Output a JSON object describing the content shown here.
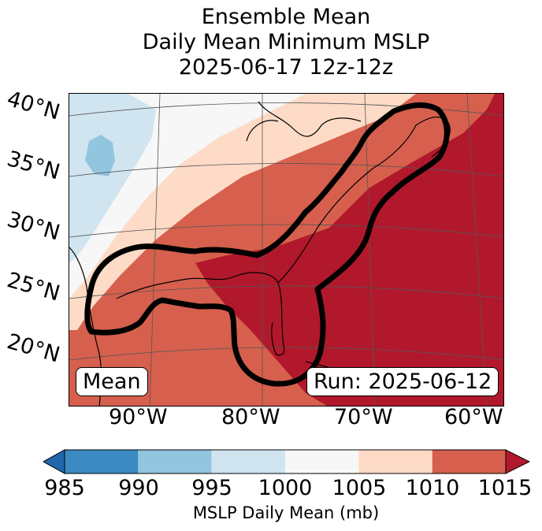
{
  "title": {
    "line1": "Ensemble Mean",
    "line2": "Daily Mean Minimum MSLP",
    "line3": "2025-06-17 12z-12z"
  },
  "map": {
    "lat_labels": [
      "40°N",
      "35°N",
      "30°N",
      "25°N",
      "20°N"
    ],
    "lon_labels": [
      "90°W",
      "80°W",
      "70°W",
      "60°W"
    ],
    "mean_box": "Mean",
    "run_box": "Run: 2025-06-12",
    "contour_color": "#000000"
  },
  "colorbar": {
    "ticks": [
      "985",
      "990",
      "995",
      "1000",
      "1005",
      "1010",
      "1015"
    ],
    "label": "MSLP Daily Mean (mb)",
    "colors": [
      "#3b8bc2",
      "#92c5de",
      "#d1e5f0",
      "#f7f7f7",
      "#fddbc7",
      "#d6604d",
      "#b2182b"
    ],
    "under_color": "#2166ac",
    "over_color": "#b2182b"
  }
}
